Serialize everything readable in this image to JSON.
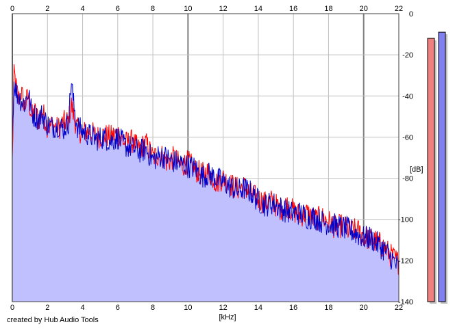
{
  "chart_data": {
    "type": "area",
    "xlabel": "[kHz]",
    "ylabel": "[dB]",
    "xlim": [
      0,
      22
    ],
    "ylim": [
      -140,
      0
    ],
    "x_ticks": [
      "0",
      "2",
      "4",
      "6",
      "8",
      "10",
      "12",
      "14",
      "16",
      "18",
      "20",
      "22"
    ],
    "y_ticks": [
      "0",
      "-20",
      "-40",
      "-60",
      "-80",
      "-100",
      "-120",
      "-140"
    ],
    "x_tick_values": [
      0,
      2,
      4,
      6,
      8,
      10,
      12,
      14,
      16,
      18,
      20,
      22
    ],
    "y_tick_values": [
      0,
      -20,
      -40,
      -60,
      -80,
      -100,
      -120,
      -140
    ],
    "grid": true,
    "colors": {
      "fill": "#c0c0ff",
      "left_channel": "#ff0000",
      "right_channel": "#0000cc",
      "grid": "#c0c0c0",
      "major_grid": "#808080",
      "left_meter": "#f08080",
      "right_meter": "#8080f0"
    },
    "series": [
      {
        "color": "#ff0000",
        "x": [
          0,
          0.1,
          0.2,
          0.35,
          0.5,
          0.7,
          0.9,
          1.1,
          1.3,
          1.5,
          1.7,
          2,
          2.3,
          2.6,
          2.9,
          3.2,
          3.35,
          3.5,
          3.7,
          4,
          4.4,
          4.8,
          5.2,
          5.6,
          6,
          6.4,
          6.8,
          7.2,
          7.6,
          8,
          8.4,
          8.8,
          9.2,
          9.6,
          10,
          10.4,
          10.8,
          11.2,
          11.6,
          12,
          12.4,
          12.8,
          13.2,
          13.6,
          14,
          14.4,
          14.8,
          15.2,
          15.6,
          16,
          16.4,
          16.8,
          17.2,
          17.6,
          18,
          18.4,
          18.8,
          19.2,
          19.6,
          20,
          20.4,
          20.8,
          21.2,
          21.6,
          22
        ],
        "values": [
          -72,
          -28,
          -35,
          -42,
          -38,
          -45,
          -40,
          -50,
          -48,
          -52,
          -47,
          -55,
          -54,
          -56,
          -53,
          -52,
          -44,
          -50,
          -56,
          -58,
          -57,
          -60,
          -59,
          -60,
          -58,
          -63,
          -62,
          -66,
          -63,
          -70,
          -68,
          -72,
          -70,
          -74,
          -72,
          -76,
          -78,
          -77,
          -82,
          -80,
          -83,
          -85,
          -84,
          -88,
          -90,
          -92,
          -91,
          -95,
          -93,
          -96,
          -98,
          -97,
          -100,
          -99,
          -101,
          -104,
          -103,
          -106,
          -105,
          -108,
          -110,
          -111,
          -114,
          -118,
          -121
        ]
      },
      {
        "color": "#0000cc",
        "x": [
          0,
          0.1,
          0.2,
          0.35,
          0.5,
          0.7,
          0.9,
          1.1,
          1.3,
          1.5,
          1.7,
          2,
          2.3,
          2.6,
          2.9,
          3.2,
          3.35,
          3.5,
          3.7,
          4,
          4.4,
          4.8,
          5.2,
          5.6,
          6,
          6.4,
          6.8,
          7.2,
          7.6,
          8,
          8.4,
          8.8,
          9.2,
          9.6,
          10,
          10.4,
          10.8,
          11.2,
          11.6,
          12,
          12.4,
          12.8,
          13.2,
          13.6,
          14,
          14.4,
          14.8,
          15.2,
          15.6,
          16,
          16.4,
          16.8,
          17.2,
          17.6,
          18,
          18.4,
          18.8,
          19.2,
          19.6,
          20,
          20.4,
          20.8,
          21.2,
          21.6,
          22
        ],
        "values": [
          -60,
          -32,
          -38,
          -40,
          -42,
          -44,
          -38,
          -48,
          -50,
          -51,
          -49,
          -54,
          -55,
          -54,
          -56,
          -53,
          -32,
          -45,
          -55,
          -57,
          -59,
          -61,
          -60,
          -62,
          -60,
          -64,
          -65,
          -67,
          -66,
          -71,
          -69,
          -70,
          -72,
          -73,
          -74,
          -75,
          -79,
          -78,
          -80,
          -82,
          -84,
          -86,
          -85,
          -87,
          -91,
          -93,
          -92,
          -94,
          -96,
          -97,
          -97,
          -99,
          -99,
          -101,
          -102,
          -103,
          -104,
          -105,
          -107,
          -109,
          -109,
          -112,
          -115,
          -119,
          -124
        ]
      }
    ],
    "level_meters": [
      {
        "color": "#f08080",
        "value": -12
      },
      {
        "color": "#8080f0",
        "value": -9
      }
    ]
  },
  "footer": {
    "credit": "created by Hub Audio Tools"
  }
}
